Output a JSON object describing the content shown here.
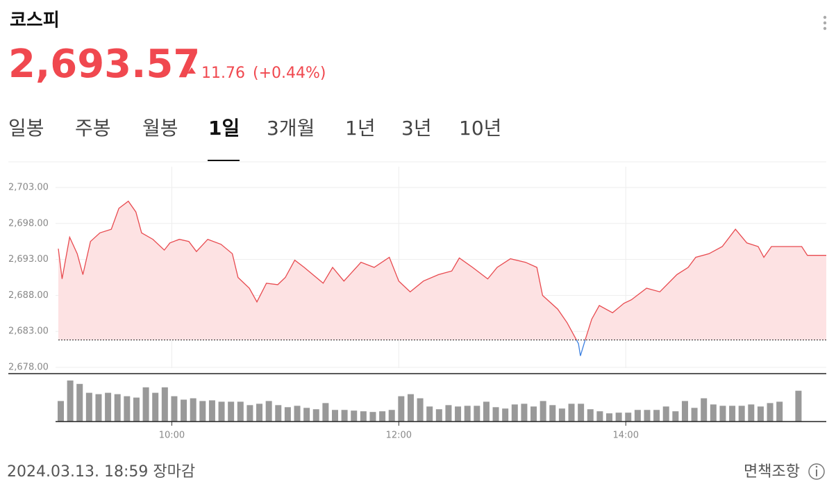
{
  "header": {
    "title": "코스피",
    "price": "2,693.57",
    "change": "11.76",
    "change_pct": "(+0.44%)"
  },
  "tabs": {
    "items": [
      "일봉",
      "주봉",
      "월봉",
      "1일",
      "3개월",
      "1년",
      "3년",
      "10년"
    ],
    "active": 3
  },
  "chart_data": {
    "type": "line",
    "x": [
      "09:00",
      "09:02",
      "09:06",
      "09:10",
      "09:13",
      "09:17",
      "09:22",
      "09:28",
      "09:32",
      "09:37",
      "09:41",
      "09:44",
      "09:50",
      "09:56",
      "09:59",
      "10:04",
      "10:09",
      "10:13",
      "10:19",
      "10:26",
      "10:32",
      "10:35",
      "10:41",
      "10:45",
      "10:50",
      "10:56",
      "11:00",
      "11:05",
      "11:10",
      "11:20",
      "11:25",
      "11:31",
      "11:40",
      "11:47",
      "11:55",
      "12:00",
      "12:06",
      "12:13",
      "12:21",
      "12:28",
      "12:32",
      "12:39",
      "12:47",
      "12:52",
      "12:59",
      "13:07",
      "13:13",
      "13:16",
      "13:24",
      "13:29",
      "13:35",
      "13:36",
      "13:39",
      "13:42",
      "13:46",
      "13:53",
      "13:59",
      "14:03",
      "14:11",
      "14:18",
      "14:27",
      "14:33",
      "14:37",
      "14:44",
      "14:51",
      "14:58",
      "15:04",
      "15:10",
      "15:13",
      "15:17",
      "15:23",
      "15:33",
      "15:36",
      "15:46"
    ],
    "values": [
      2694.5,
      2690.3,
      2696.1,
      2693.8,
      2690.9,
      2695.5,
      2696.7,
      2697.2,
      2700.1,
      2701.1,
      2699.6,
      2696.7,
      2695.8,
      2694.3,
      2695.3,
      2695.8,
      2695.5,
      2694.1,
      2695.8,
      2695.1,
      2693.8,
      2690.5,
      2689.0,
      2687.1,
      2689.7,
      2689.5,
      2690.5,
      2692.9,
      2691.9,
      2689.7,
      2691.9,
      2690.0,
      2692.6,
      2691.9,
      2693.3,
      2690.0,
      2688.5,
      2690.0,
      2690.9,
      2691.4,
      2693.2,
      2691.9,
      2690.3,
      2691.9,
      2693.1,
      2692.6,
      2691.9,
      2688.0,
      2686.1,
      2684.2,
      2681.3,
      2679.6,
      2682.2,
      2684.7,
      2686.6,
      2685.6,
      2686.9,
      2687.4,
      2689.0,
      2688.5,
      2690.9,
      2691.9,
      2693.3,
      2693.8,
      2694.8,
      2697.2,
      2695.3,
      2694.8,
      2693.3,
      2694.8,
      2694.8,
      2694.8,
      2693.57,
      2693.57
    ],
    "prev_close": 2681.81,
    "color": "#e84a4f",
    "color_below": "#3a7fe0",
    "fill": "#fde2e3",
    "xlim": [
      "09:00",
      "15:46"
    ],
    "xticks": [
      "10:00",
      "12:00",
      "14:00"
    ],
    "ylim": [
      2678,
      2703
    ],
    "yticks": [
      {
        "value": 2703,
        "label": "2,703.00"
      },
      {
        "value": 2698,
        "label": "2,698.00"
      },
      {
        "value": 2693,
        "label": "2,693.00"
      },
      {
        "value": 2688,
        "label": "2,688.00"
      },
      {
        "value": 2683,
        "label": "2,683.00"
      },
      {
        "value": 2678,
        "label": "2,678.00"
      }
    ],
    "grid": true,
    "volume": {
      "color": "#999999",
      "ylim": [
        0,
        70
      ],
      "x": [
        "09:00",
        "09:05",
        "09:10",
        "09:15",
        "09:20",
        "09:25",
        "09:30",
        "09:35",
        "09:40",
        "09:45",
        "09:50",
        "09:55",
        "10:00",
        "10:05",
        "10:10",
        "10:15",
        "10:20",
        "10:25",
        "10:30",
        "10:35",
        "10:40",
        "10:45",
        "10:50",
        "10:55",
        "11:00",
        "11:05",
        "11:10",
        "11:15",
        "11:20",
        "11:25",
        "11:30",
        "11:35",
        "11:40",
        "11:45",
        "11:50",
        "11:55",
        "12:00",
        "12:05",
        "12:10",
        "12:15",
        "12:20",
        "12:25",
        "12:30",
        "12:35",
        "12:40",
        "12:45",
        "12:50",
        "12:55",
        "13:00",
        "13:05",
        "13:10",
        "13:15",
        "13:20",
        "13:25",
        "13:30",
        "13:35",
        "13:40",
        "13:45",
        "13:50",
        "13:55",
        "14:00",
        "14:05",
        "14:10",
        "14:15",
        "14:20",
        "14:25",
        "14:30",
        "14:35",
        "14:40",
        "14:45",
        "14:50",
        "14:55",
        "15:00",
        "15:05",
        "15:10",
        "15:15",
        "15:20",
        "15:30"
      ],
      "values": [
        30,
        60,
        55,
        42,
        40,
        42,
        40,
        37,
        35,
        50,
        42,
        50,
        37,
        32,
        34,
        30,
        31,
        29,
        29,
        29,
        24,
        26,
        30,
        24,
        21,
        23,
        20,
        18,
        27,
        17,
        17,
        16,
        15,
        14,
        15,
        17,
        37,
        40,
        34,
        22,
        18,
        24,
        22,
        23,
        23,
        29,
        21,
        19,
        25,
        26,
        22,
        30,
        24,
        19,
        26,
        26,
        18,
        15,
        12,
        13,
        13,
        17,
        17,
        17,
        22,
        15,
        30,
        20,
        34,
        25,
        23,
        23,
        23,
        25,
        22,
        27,
        29,
        45
      ]
    }
  },
  "footer": {
    "timestamp": "2024.03.13. 18:59 장마감",
    "disclaimer": "면책조항"
  }
}
